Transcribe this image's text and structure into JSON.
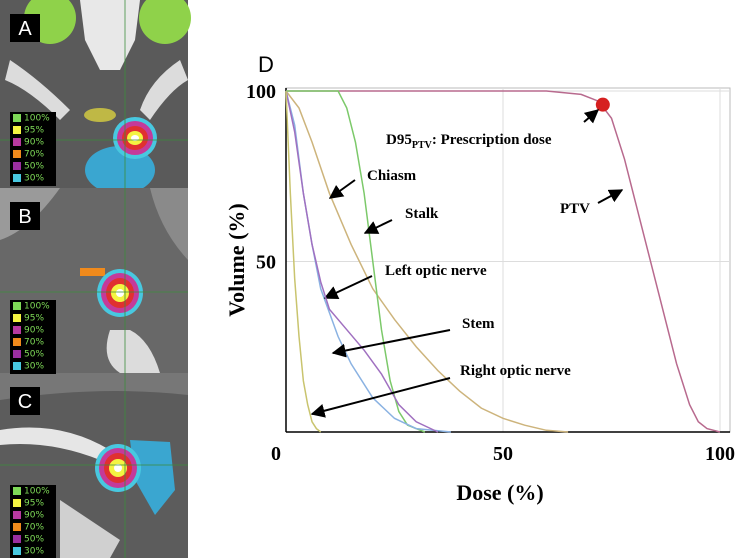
{
  "panels": [
    {
      "label": "A"
    },
    {
      "label": "B"
    },
    {
      "label": "C"
    }
  ],
  "isodose_legend": [
    {
      "label": "100%",
      "color": "#7ed957"
    },
    {
      "label": "95%",
      "color": "#f4f442"
    },
    {
      "label": "90%",
      "color": "#b83aa0"
    },
    {
      "label": "70%",
      "color": "#f08a1c"
    },
    {
      "label": "50%",
      "color": "#9b2fa0"
    },
    {
      "label": "30%",
      "color": "#48c8e0"
    }
  ],
  "chart_data": {
    "type": "line",
    "panel_label": "D",
    "xlabel": "Dose (%)",
    "ylabel": "Volume (%)",
    "xlim": [
      0,
      102
    ],
    "ylim": [
      0,
      101
    ],
    "xticks": [
      0,
      50,
      100
    ],
    "yticks": [
      50,
      100
    ],
    "grid": true,
    "series": [
      {
        "name": "PTV",
        "color": "#b86a8e",
        "x": [
          0,
          60,
          68,
          72,
          75,
          78,
          82,
          86,
          90,
          93,
          95,
          97,
          100
        ],
        "values": [
          100,
          100,
          99,
          97,
          92,
          80,
          60,
          40,
          20,
          8,
          3,
          1,
          0
        ]
      },
      {
        "name": "Chiasm",
        "color": "#cdb47c",
        "x": [
          0,
          3,
          6,
          10,
          15,
          20,
          25,
          30,
          35,
          40,
          45,
          50,
          55,
          60,
          65
        ],
        "values": [
          100,
          95,
          85,
          70,
          55,
          42,
          33,
          25,
          18,
          12,
          7,
          4,
          2,
          0.5,
          0
        ]
      },
      {
        "name": "Stalk",
        "color": "#7cc96a",
        "x": [
          0,
          12,
          14,
          16,
          18,
          20,
          22,
          24,
          26,
          28,
          32
        ],
        "values": [
          100,
          100,
          95,
          85,
          70,
          50,
          30,
          15,
          6,
          2,
          0
        ]
      },
      {
        "name": "Left optic nerve",
        "color": "#8ab2e2",
        "x": [
          0,
          2,
          4,
          6,
          8,
          10,
          12,
          15,
          20,
          25,
          30,
          38
        ],
        "values": [
          100,
          90,
          70,
          55,
          42,
          35,
          28,
          20,
          10,
          4,
          1,
          0
        ]
      },
      {
        "name": "Stem",
        "color": "#a070c0",
        "x": [
          0,
          2,
          4,
          6,
          8,
          10,
          14,
          18,
          22,
          26,
          30,
          35
        ],
        "values": [
          100,
          88,
          70,
          55,
          44,
          36,
          30,
          24,
          17,
          8,
          3,
          0
        ]
      },
      {
        "name": "Right optic nerve",
        "color": "#c9c46e",
        "x": [
          0,
          1,
          2,
          3,
          4,
          5,
          6,
          7,
          8
        ],
        "values": [
          100,
          70,
          45,
          28,
          15,
          8,
          3,
          1,
          0
        ]
      }
    ],
    "annotation": {
      "text": "D95",
      "subscript": "PTV",
      "suffix": ": Prescription dose",
      "x": 73,
      "y": 96,
      "color": "#d62020"
    }
  }
}
